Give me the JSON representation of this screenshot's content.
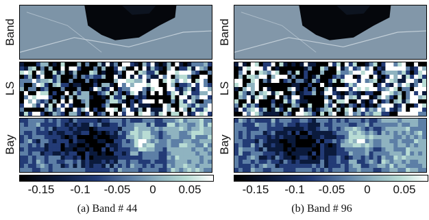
{
  "figure": {
    "row_labels": [
      "Band",
      "LS",
      "Bay"
    ],
    "colorbar_ticks": [
      "-0.15",
      "-0.1",
      "-0.05",
      "0",
      "0.05"
    ],
    "panels": [
      {
        "caption": "(a)  Band # 44"
      },
      {
        "caption": "(b)  Band # 96"
      }
    ],
    "colormap": [
      "#000000",
      "#0b1a3c",
      "#233b76",
      "#5d7fa6",
      "#8fb3c0",
      "#b8dcd4",
      "#ffffff"
    ]
  }
}
